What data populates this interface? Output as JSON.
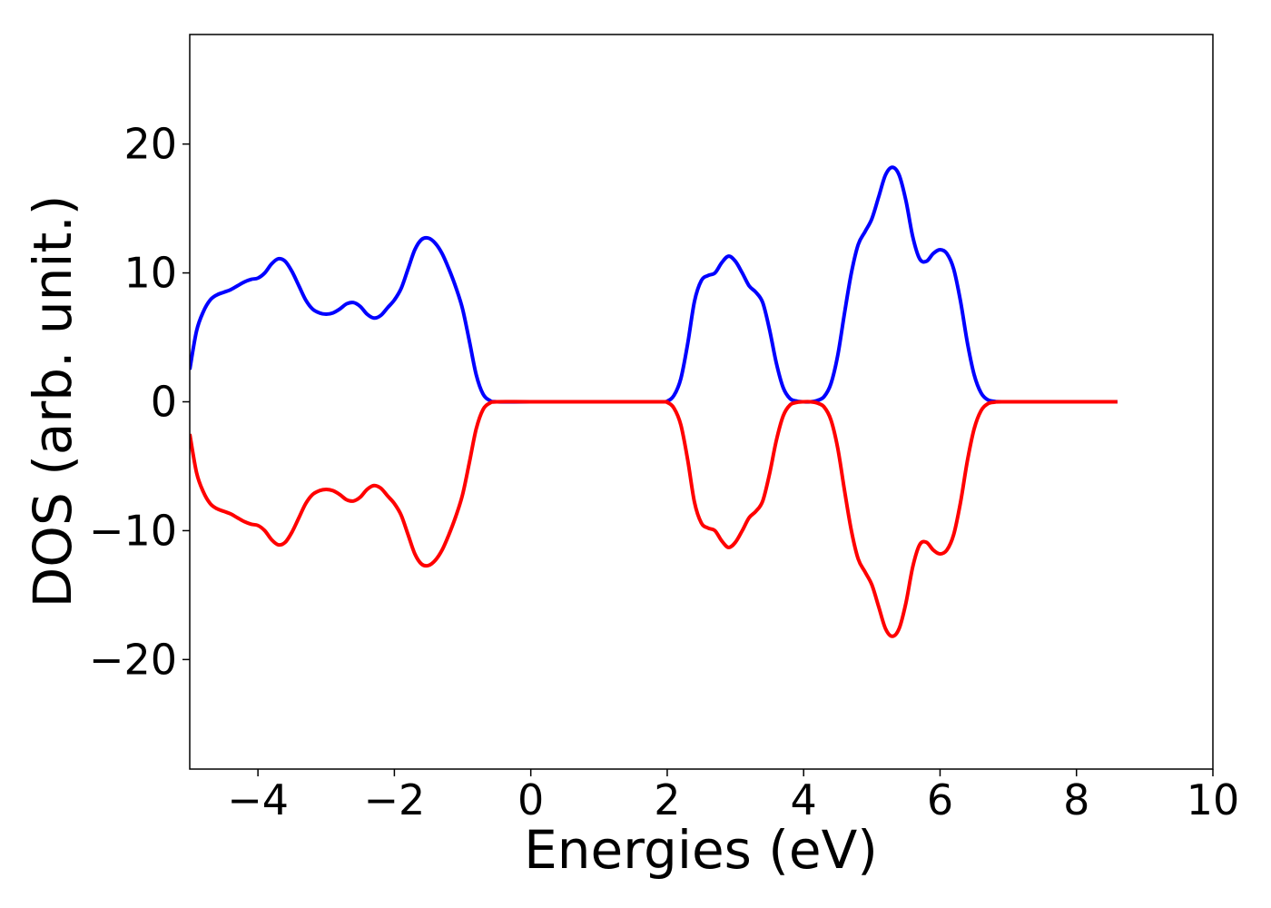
{
  "chart_data": {
    "type": "line",
    "title": "",
    "xlabel": "Energies (eV)",
    "ylabel": "DOS (arb. unit.)",
    "xlim": [
      -5,
      10
    ],
    "ylim": [
      -28.5,
      28.5
    ],
    "xticks": [
      -4,
      -2,
      0,
      2,
      4,
      6,
      8,
      10
    ],
    "yticks": [
      -20,
      -10,
      0,
      10,
      20
    ],
    "xtick_labels": [
      "−4",
      "−2",
      "0",
      "2",
      "4",
      "6",
      "8",
      "10"
    ],
    "ytick_labels": [
      "−20",
      "−10",
      "0",
      "10",
      "20"
    ],
    "grid": false,
    "legend": "none",
    "series": [
      {
        "color": "#0000ff",
        "points": [
          [
            -5.0,
            2.5
          ],
          [
            -4.9,
            5.5
          ],
          [
            -4.8,
            7.0
          ],
          [
            -4.7,
            7.9
          ],
          [
            -4.6,
            8.3
          ],
          [
            -4.5,
            8.5
          ],
          [
            -4.4,
            8.7
          ],
          [
            -4.3,
            9.0
          ],
          [
            -4.2,
            9.3
          ],
          [
            -4.1,
            9.5
          ],
          [
            -4.0,
            9.6
          ],
          [
            -3.9,
            10.0
          ],
          [
            -3.8,
            10.7
          ],
          [
            -3.7,
            11.1
          ],
          [
            -3.6,
            10.9
          ],
          [
            -3.5,
            10.1
          ],
          [
            -3.4,
            9.0
          ],
          [
            -3.3,
            7.9
          ],
          [
            -3.2,
            7.2
          ],
          [
            -3.1,
            6.9
          ],
          [
            -3.0,
            6.8
          ],
          [
            -2.9,
            6.9
          ],
          [
            -2.8,
            7.2
          ],
          [
            -2.7,
            7.6
          ],
          [
            -2.6,
            7.7
          ],
          [
            -2.5,
            7.4
          ],
          [
            -2.4,
            6.8
          ],
          [
            -2.3,
            6.5
          ],
          [
            -2.2,
            6.7
          ],
          [
            -2.1,
            7.3
          ],
          [
            -2.0,
            7.9
          ],
          [
            -1.9,
            8.8
          ],
          [
            -1.8,
            10.3
          ],
          [
            -1.7,
            11.8
          ],
          [
            -1.6,
            12.6
          ],
          [
            -1.5,
            12.7
          ],
          [
            -1.4,
            12.3
          ],
          [
            -1.3,
            11.5
          ],
          [
            -1.2,
            10.3
          ],
          [
            -1.1,
            8.9
          ],
          [
            -1.0,
            7.2
          ],
          [
            -0.9,
            4.7
          ],
          [
            -0.8,
            2.1
          ],
          [
            -0.7,
            0.6
          ],
          [
            -0.6,
            0.1
          ],
          [
            -0.5,
            0.0
          ],
          [
            0.0,
            0.0
          ],
          [
            1.0,
            0.0
          ],
          [
            1.9,
            0.0
          ],
          [
            2.0,
            0.05
          ],
          [
            2.1,
            0.5
          ],
          [
            2.2,
            1.8
          ],
          [
            2.3,
            4.5
          ],
          [
            2.4,
            7.8
          ],
          [
            2.5,
            9.4
          ],
          [
            2.6,
            9.8
          ],
          [
            2.7,
            10.0
          ],
          [
            2.8,
            10.8
          ],
          [
            2.9,
            11.3
          ],
          [
            3.0,
            10.9
          ],
          [
            3.1,
            10.0
          ],
          [
            3.2,
            9.0
          ],
          [
            3.3,
            8.5
          ],
          [
            3.4,
            7.7
          ],
          [
            3.5,
            5.6
          ],
          [
            3.6,
            3.0
          ],
          [
            3.7,
            1.1
          ],
          [
            3.8,
            0.25
          ],
          [
            3.9,
            0.05
          ],
          [
            4.0,
            0.0
          ],
          [
            4.1,
            0.0
          ],
          [
            4.2,
            0.1
          ],
          [
            4.3,
            0.4
          ],
          [
            4.4,
            1.4
          ],
          [
            4.5,
            3.6
          ],
          [
            4.6,
            6.9
          ],
          [
            4.7,
            10.0
          ],
          [
            4.8,
            12.2
          ],
          [
            4.9,
            13.2
          ],
          [
            5.0,
            14.2
          ],
          [
            5.1,
            15.9
          ],
          [
            5.2,
            17.6
          ],
          [
            5.3,
            18.2
          ],
          [
            5.4,
            17.6
          ],
          [
            5.5,
            15.6
          ],
          [
            5.6,
            12.8
          ],
          [
            5.7,
            11.1
          ],
          [
            5.8,
            10.9
          ],
          [
            5.9,
            11.5
          ],
          [
            6.0,
            11.8
          ],
          [
            6.1,
            11.5
          ],
          [
            6.2,
            10.3
          ],
          [
            6.3,
            7.8
          ],
          [
            6.4,
            4.6
          ],
          [
            6.5,
            2.1
          ],
          [
            6.6,
            0.7
          ],
          [
            6.7,
            0.15
          ],
          [
            6.8,
            0.03
          ],
          [
            6.9,
            0.0
          ],
          [
            7.5,
            0.0
          ],
          [
            8.0,
            0.0
          ],
          [
            8.6,
            0.0
          ]
        ]
      },
      {
        "color": "#ff0000",
        "points": [
          [
            -5.0,
            -2.5
          ],
          [
            -4.9,
            -5.5
          ],
          [
            -4.8,
            -7.0
          ],
          [
            -4.7,
            -7.9
          ],
          [
            -4.6,
            -8.3
          ],
          [
            -4.5,
            -8.5
          ],
          [
            -4.4,
            -8.7
          ],
          [
            -4.3,
            -9.0
          ],
          [
            -4.2,
            -9.3
          ],
          [
            -4.1,
            -9.5
          ],
          [
            -4.0,
            -9.6
          ],
          [
            -3.9,
            -10.0
          ],
          [
            -3.8,
            -10.7
          ],
          [
            -3.7,
            -11.1
          ],
          [
            -3.6,
            -10.9
          ],
          [
            -3.5,
            -10.1
          ],
          [
            -3.4,
            -9.0
          ],
          [
            -3.3,
            -7.9
          ],
          [
            -3.2,
            -7.2
          ],
          [
            -3.1,
            -6.9
          ],
          [
            -3.0,
            -6.8
          ],
          [
            -2.9,
            -6.9
          ],
          [
            -2.8,
            -7.2
          ],
          [
            -2.7,
            -7.6
          ],
          [
            -2.6,
            -7.7
          ],
          [
            -2.5,
            -7.4
          ],
          [
            -2.4,
            -6.8
          ],
          [
            -2.3,
            -6.5
          ],
          [
            -2.2,
            -6.7
          ],
          [
            -2.1,
            -7.3
          ],
          [
            -2.0,
            -7.9
          ],
          [
            -1.9,
            -8.8
          ],
          [
            -1.8,
            -10.3
          ],
          [
            -1.7,
            -11.8
          ],
          [
            -1.6,
            -12.6
          ],
          [
            -1.5,
            -12.7
          ],
          [
            -1.4,
            -12.3
          ],
          [
            -1.3,
            -11.5
          ],
          [
            -1.2,
            -10.3
          ],
          [
            -1.1,
            -8.9
          ],
          [
            -1.0,
            -7.2
          ],
          [
            -0.9,
            -4.7
          ],
          [
            -0.8,
            -2.1
          ],
          [
            -0.7,
            -0.6
          ],
          [
            -0.6,
            -0.1
          ],
          [
            -0.5,
            0.0
          ],
          [
            0.0,
            0.0
          ],
          [
            1.0,
            0.0
          ],
          [
            1.9,
            0.0
          ],
          [
            2.0,
            -0.05
          ],
          [
            2.1,
            -0.5
          ],
          [
            2.2,
            -1.8
          ],
          [
            2.3,
            -4.5
          ],
          [
            2.4,
            -7.8
          ],
          [
            2.5,
            -9.4
          ],
          [
            2.6,
            -9.8
          ],
          [
            2.7,
            -10.0
          ],
          [
            2.8,
            -10.8
          ],
          [
            2.9,
            -11.3
          ],
          [
            3.0,
            -10.9
          ],
          [
            3.1,
            -10.0
          ],
          [
            3.2,
            -9.0
          ],
          [
            3.3,
            -8.5
          ],
          [
            3.4,
            -7.7
          ],
          [
            3.5,
            -5.6
          ],
          [
            3.6,
            -3.0
          ],
          [
            3.7,
            -1.1
          ],
          [
            3.8,
            -0.25
          ],
          [
            3.9,
            -0.05
          ],
          [
            4.0,
            0.0
          ],
          [
            4.1,
            0.0
          ],
          [
            4.2,
            -0.1
          ],
          [
            4.3,
            -0.4
          ],
          [
            4.4,
            -1.4
          ],
          [
            4.5,
            -3.6
          ],
          [
            4.6,
            -6.9
          ],
          [
            4.7,
            -10.0
          ],
          [
            4.8,
            -12.2
          ],
          [
            4.9,
            -13.2
          ],
          [
            5.0,
            -14.2
          ],
          [
            5.1,
            -15.9
          ],
          [
            5.2,
            -17.6
          ],
          [
            5.3,
            -18.2
          ],
          [
            5.4,
            -17.6
          ],
          [
            5.5,
            -15.6
          ],
          [
            5.6,
            -12.8
          ],
          [
            5.7,
            -11.1
          ],
          [
            5.8,
            -10.9
          ],
          [
            5.9,
            -11.5
          ],
          [
            6.0,
            -11.8
          ],
          [
            6.1,
            -11.5
          ],
          [
            6.2,
            -10.3
          ],
          [
            6.3,
            -7.8
          ],
          [
            6.4,
            -4.6
          ],
          [
            6.5,
            -2.1
          ],
          [
            6.6,
            -0.7
          ],
          [
            6.7,
            -0.15
          ],
          [
            6.8,
            -0.03
          ],
          [
            6.9,
            0.0
          ],
          [
            7.5,
            0.0
          ],
          [
            8.0,
            0.0
          ],
          [
            8.6,
            0.0
          ]
        ]
      }
    ]
  }
}
